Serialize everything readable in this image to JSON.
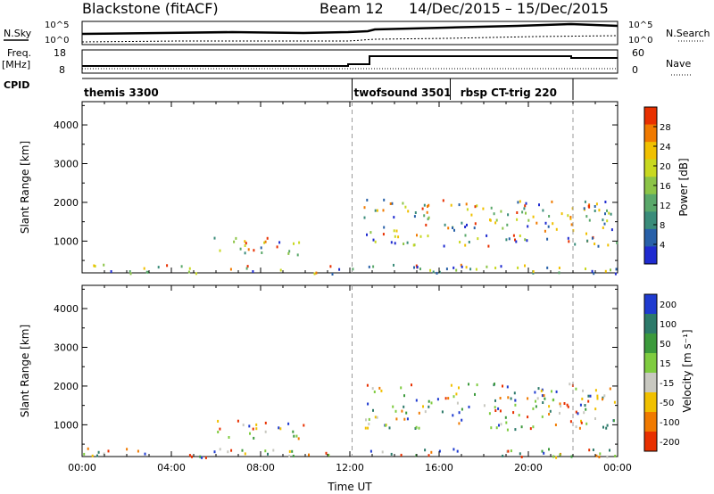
{
  "header": {
    "site": "Blackstone (fitACF)",
    "beam": "Beam 12",
    "date_range": "14/Dec/2015 – 15/Dec/2015"
  },
  "aux_labels": {
    "nsky": "N.Sky",
    "freq": "Freq.",
    "freq_unit": "[MHz]",
    "cpid": "CPID",
    "nsearch": "N.Search",
    "nave": "Nave",
    "nsky_max": "10^5",
    "nsky_min": "10^0",
    "nsearch_max": "10^5",
    "nsearch_min": "10^0",
    "freq_max": "18",
    "freq_min": "8",
    "nave_max": "60",
    "nave_min": "0"
  },
  "cpid_segments": [
    {
      "label": "themis 3300",
      "start": 0,
      "end": 12.1
    },
    {
      "label": "twofsound 3501",
      "start": 12.1,
      "end": 16.5
    },
    {
      "label": "rbsp CT-trig 220",
      "start": 16.5,
      "end": 22.0
    }
  ],
  "chart_data": [
    {
      "type": "heatmap",
      "panel": "power",
      "ylabel": "Slant Range [km]",
      "xlabel": "",
      "xlim": [
        0,
        24
      ],
      "ylim": [
        180,
        4600
      ],
      "y_ticks": [
        1000,
        2000,
        3000,
        4000
      ],
      "colorbar": {
        "label": "Power [dB]",
        "range": [
          0,
          32
        ],
        "ticks": [
          4,
          8,
          12,
          16,
          20,
          24,
          28
        ],
        "colors": [
          "#1f2bd0",
          "#2860a8",
          "#3a8c7a",
          "#5aa86a",
          "#8cc447",
          "#c8d820",
          "#f0c000",
          "#f07a00",
          "#e83000"
        ]
      },
      "regions": [
        {
          "t0": 5.9,
          "t1": 10.0,
          "r0": 650,
          "r1": 1150,
          "level": 12
        },
        {
          "t0": 12.6,
          "t1": 24.0,
          "r0": 900,
          "r1": 2100,
          "level": 24
        },
        {
          "t0": 0.0,
          "t1": 24.0,
          "r0": 180,
          "r1": 420,
          "level": 16
        }
      ]
    },
    {
      "type": "heatmap",
      "panel": "velocity",
      "ylabel": "Slant Range [km]",
      "xlabel": "Time UT",
      "xlim": [
        0,
        24
      ],
      "ylim": [
        180,
        4600
      ],
      "y_ticks": [
        1000,
        2000,
        3000,
        4000
      ],
      "x_ticks": [
        "00:00",
        "04:00",
        "08:00",
        "12:00",
        "16:00",
        "20:00",
        "00:00"
      ],
      "colorbar": {
        "label": "Velocity [m s⁻¹]",
        "tick_labels": [
          "200",
          "100",
          "50",
          "15",
          "-15",
          "-50",
          "-100",
          "-200"
        ],
        "colors": [
          "#1f3bd0",
          "#2d7a6a",
          "#3c9a3c",
          "#7fcc40",
          "#c8c8c0",
          "#f0c000",
          "#f07a00",
          "#e83000"
        ]
      },
      "regions": [
        {
          "t0": 6.0,
          "t1": 10.0,
          "r0": 650,
          "r1": 1150,
          "level": -30
        },
        {
          "t0": 12.6,
          "t1": 24.0,
          "r0": 900,
          "r1": 2100,
          "level": 0
        },
        {
          "t0": 0.0,
          "t1": 24.0,
          "r0": 180,
          "r1": 420,
          "level": 20
        }
      ]
    }
  ]
}
